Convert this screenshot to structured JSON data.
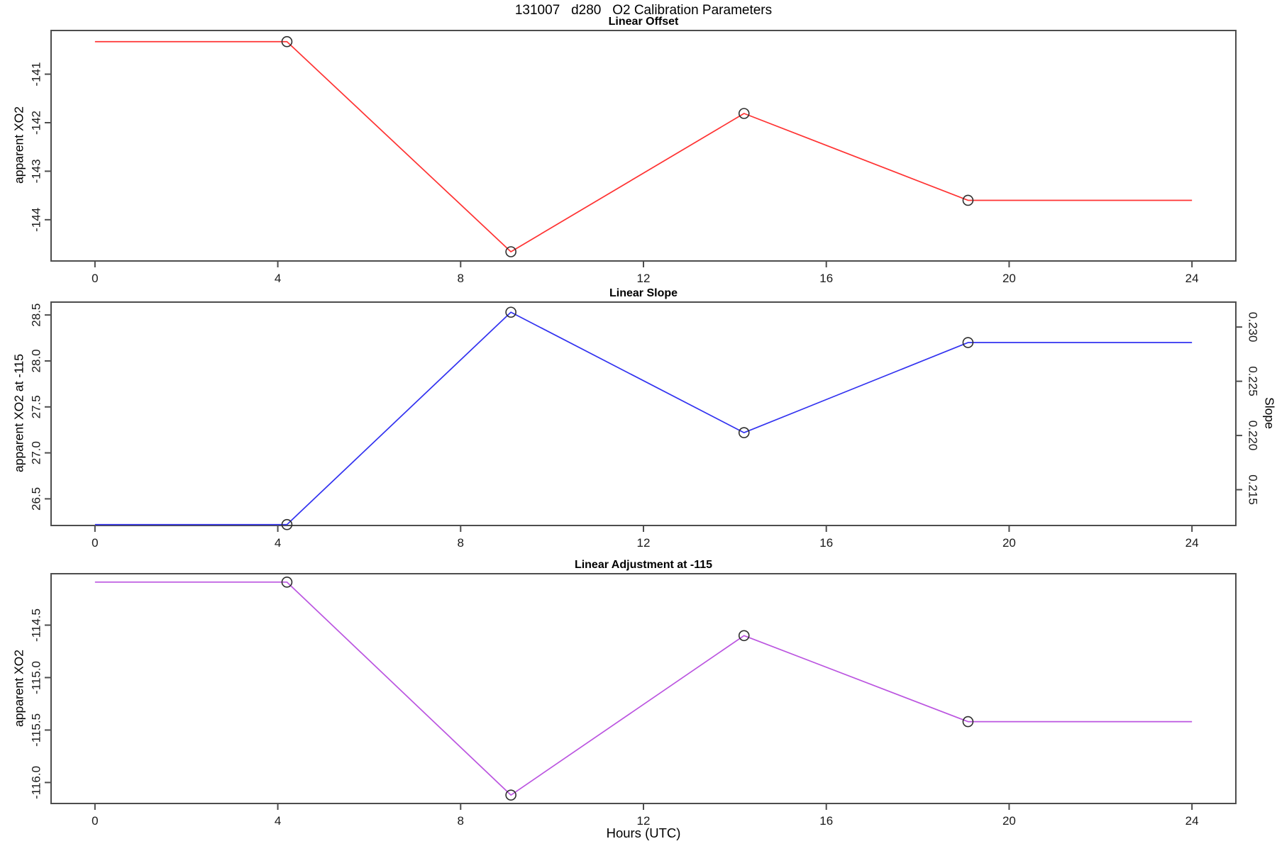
{
  "title": "131007   d280   O2 Calibration Parameters",
  "xlabel": "Hours (UTC)",
  "x_axis": {
    "xlim": [
      -0.96,
      24.96
    ],
    "ticks": [
      0,
      4,
      8,
      12,
      16,
      20,
      24
    ],
    "tick_labels": [
      "0",
      "4",
      "8",
      "12",
      "16",
      "20",
      "24"
    ]
  },
  "marker": {
    "shape": "open-circle",
    "color": "#2e2e2e"
  },
  "frame_color": "#4d4d4d",
  "chart_data": [
    {
      "type": "line",
      "title": "Linear Offset",
      "ylabel": "apparent XO2",
      "line_color": "#ff3333",
      "x": [
        4.2,
        9.1,
        14.2,
        19.1
      ],
      "y": [
        -140.33,
        -144.66,
        -141.81,
        -143.6
      ],
      "line_x": [
        0,
        4.2,
        9.1,
        14.2,
        19.1,
        24
      ],
      "line_y": [
        -140.33,
        -140.33,
        -144.66,
        -141.81,
        -143.6,
        -143.6
      ],
      "ylim": [
        -144.85,
        -140.1
      ],
      "yticks": [
        -141,
        -142,
        -143,
        -144
      ],
      "ytick_labels": [
        "-141",
        "-142",
        "-143",
        "-144"
      ]
    },
    {
      "type": "line",
      "title": "Linear Slope",
      "ylabel": "apparent XO2 at -115",
      "line_color": "#3232f0",
      "x": [
        4.2,
        9.1,
        14.2,
        19.1
      ],
      "y": [
        26.22,
        28.53,
        27.22,
        28.2
      ],
      "line_x": [
        0,
        4.2,
        9.1,
        14.2,
        19.1,
        24
      ],
      "line_y": [
        26.22,
        26.22,
        28.53,
        27.22,
        28.2,
        28.2
      ],
      "ylim": [
        26.21,
        28.64
      ],
      "yticks": [
        26.5,
        27.0,
        27.5,
        28.0,
        28.5
      ],
      "ytick_labels": [
        "26.5",
        "27.0",
        "27.5",
        "28.0",
        "28.5"
      ],
      "right_axis": {
        "label": "Slope",
        "ylim": [
          0.2117,
          0.2323
        ],
        "ticks": [
          0.215,
          0.22,
          0.225,
          0.23
        ],
        "tick_labels": [
          "0.215",
          "0.220",
          "0.225",
          "0.230"
        ]
      }
    },
    {
      "type": "line",
      "title": "Linear Adjustment at -115",
      "ylabel": "apparent XO2",
      "line_color": "#bb55e0",
      "x": [
        4.2,
        9.1,
        14.2,
        19.1
      ],
      "y": [
        -114.09,
        -116.12,
        -114.6,
        -115.42
      ],
      "line_x": [
        0,
        4.2,
        9.1,
        14.2,
        19.1,
        24
      ],
      "line_y": [
        -114.09,
        -114.09,
        -116.12,
        -114.6,
        -115.42,
        -115.42
      ],
      "ylim": [
        -116.2,
        -114.01
      ],
      "yticks": [
        -114.5,
        -115.0,
        -115.5,
        -116.0
      ],
      "ytick_labels": [
        "-114.5",
        "-115.0",
        "-115.5",
        "-116.0"
      ]
    }
  ]
}
